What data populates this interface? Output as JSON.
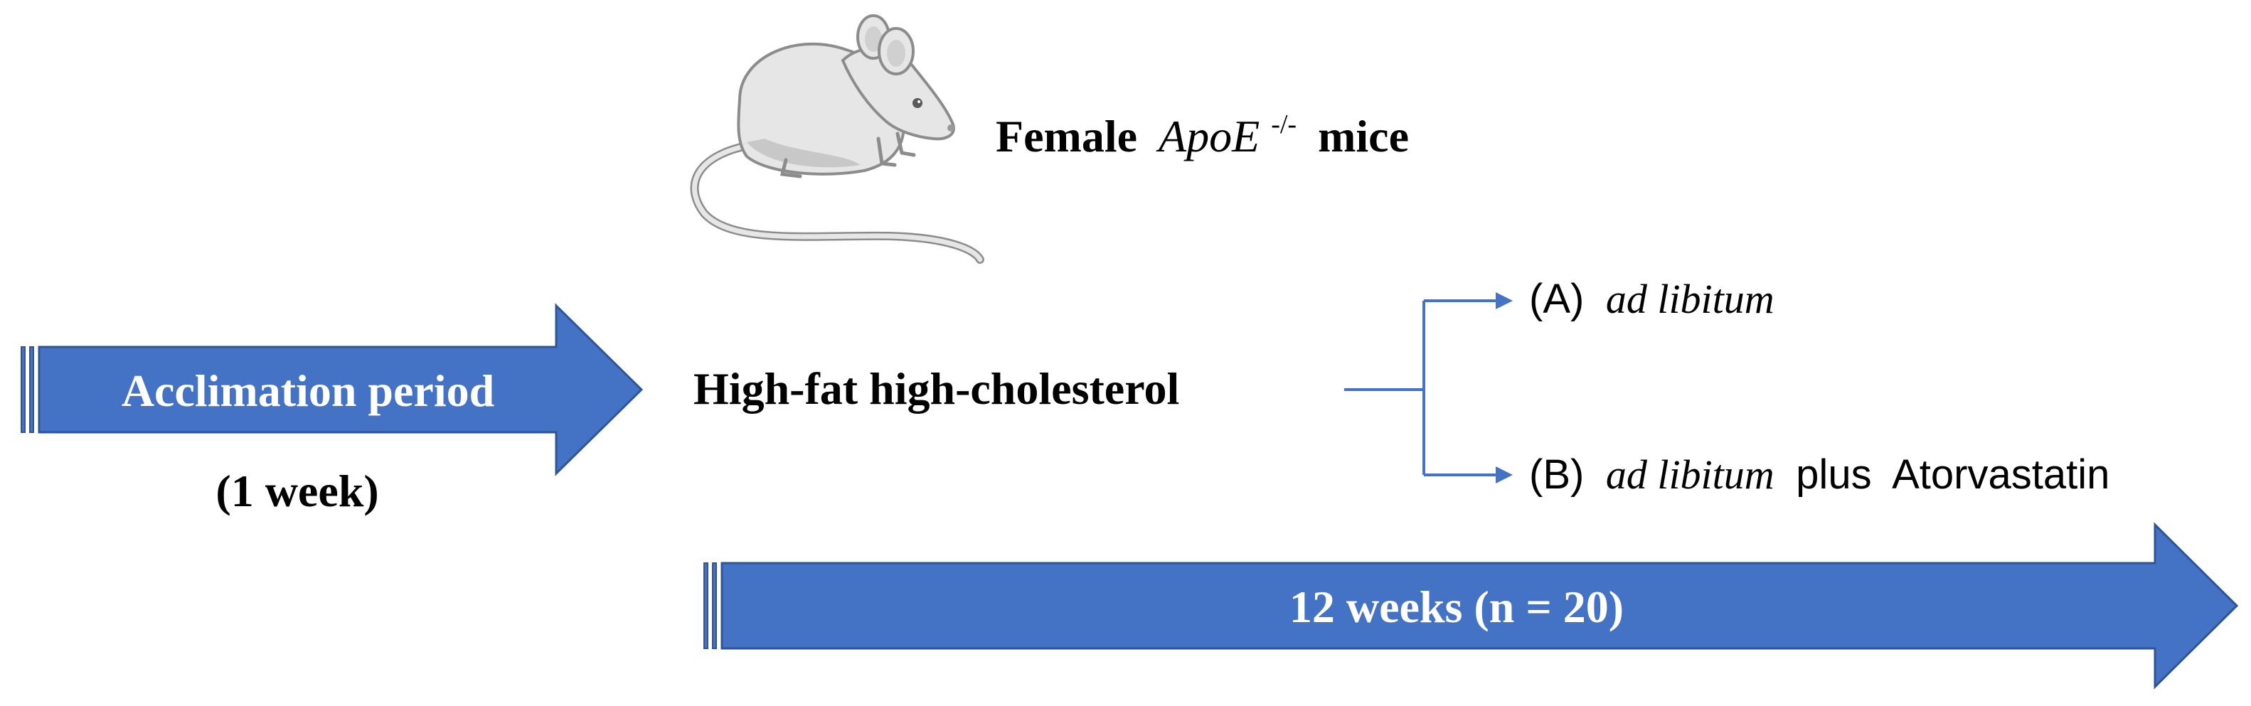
{
  "colors": {
    "arrow_fill": "#4472C4",
    "arrow_stroke": "#2F5597",
    "connector": "#4472C4",
    "text": "#000000",
    "arrow_text": "#FFFFFF",
    "mouse_body": "#E6E6E6",
    "mouse_shade": "#C8C8C8",
    "mouse_outline": "#8C8C8C"
  },
  "header": {
    "subject_prefix": "Female",
    "subject_gene": "ApoE",
    "subject_gene_superscript": "-/-",
    "subject_suffix": "mice",
    "subject_icon": "mouse-icon"
  },
  "acclimation": {
    "label": "Acclimation period",
    "duration": "(1 week)"
  },
  "diet": {
    "label": "High-fat high-cholesterol"
  },
  "groups": [
    {
      "letter": "(A)",
      "regimen": "ad libitum",
      "plus": "",
      "drug": ""
    },
    {
      "letter": "(B)",
      "regimen": "ad libitum",
      "plus": "plus",
      "drug": "Atorvastatin"
    }
  ],
  "timeline": {
    "label": "12 weeks (n = 20)"
  }
}
